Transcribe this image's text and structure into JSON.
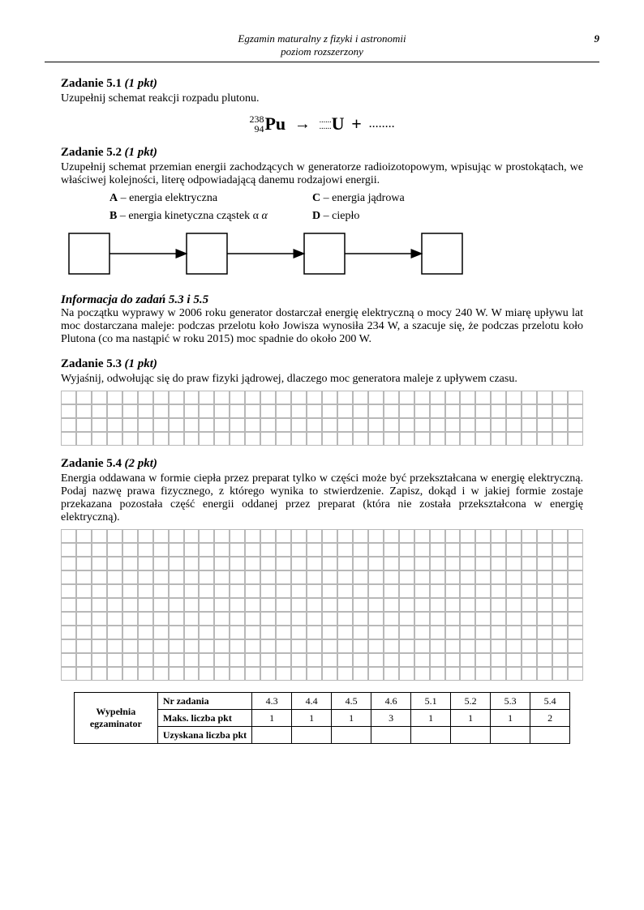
{
  "header": {
    "line1": "Egzamin maturalny z fizyki i astronomii",
    "line2": "poziom rozszerzony",
    "page_number": "9"
  },
  "task51": {
    "title": "Zadanie 5.1",
    "points": "(1 pkt)",
    "body": "Uzupełnij schemat reakcji rozpadu plutonu.",
    "eq_mass": "238",
    "eq_atomic": "94",
    "eq_el1": "Pu",
    "eq_el2": "U",
    "eq_plus": "+",
    "eq_trail": "........"
  },
  "task52": {
    "title": "Zadanie 5.2",
    "points": "(1 pkt)",
    "body": "Uzupełnij schemat przemian energii zachodzących w generatorze radioizotopowym, wpisując w prostokątach, we właściwej kolejności, literę odpowiadającą danemu rodzajowi energii.",
    "legend": {
      "A": "– energia elektryczna",
      "B": "– energia kinetyczna cząstek α",
      "C": "– energia jądrowa",
      "D": "– ciepło"
    },
    "diagram": {
      "box_count": 4,
      "box_size": 50,
      "box_stroke": "#000",
      "arrow_stroke": "#000",
      "spacing": 145
    }
  },
  "info": {
    "title": "Informacja do zadań 5.3 i 5.5",
    "body": "Na początku wyprawy w 2006 roku generator dostarczał energię elektryczną o mocy 240 W. W miarę upływu lat moc dostarczana maleje: podczas przelotu koło Jowisza wynosiła 234 W, a szacuje się, że podczas przelotu koło Plutona (co ma nastąpić w roku 2015) moc spadnie do około 200 W."
  },
  "task53": {
    "title": "Zadanie 5.3",
    "points": "(1 pkt)",
    "body": "Wyjaśnij, odwołując się do praw fizyki jądrowej, dlaczego moc generatora maleje z upływem czasu.",
    "grid_rows": 4,
    "grid_cols": 34
  },
  "task54": {
    "title": "Zadanie 5.4",
    "points": "(2 pkt)",
    "body": "Energia oddawana w formie ciepła przez preparat tylko w części może być przekształcana w energię elektryczną. Podaj nazwę prawa fizycznego, z którego wynika to stwierdzenie. Zapisz, dokąd i w jakiej formie zostaje przekazana pozostała część energii oddanej przez preparat (która nie została przekształcona w energię elektryczną).",
    "grid_rows": 11,
    "grid_cols": 34
  },
  "examiner": {
    "vlabel": "Wypełnia egzaminator",
    "rows": [
      {
        "label": "Nr zadania",
        "vals": [
          "4.3",
          "4.4",
          "4.5",
          "4.6",
          "5.1",
          "5.2",
          "5.3",
          "5.4"
        ]
      },
      {
        "label": "Maks. liczba pkt",
        "vals": [
          "1",
          "1",
          "1",
          "3",
          "1",
          "1",
          "1",
          "2"
        ]
      },
      {
        "label": "Uzyskana liczba pkt",
        "vals": [
          "",
          "",
          "",
          "",
          "",
          "",
          "",
          ""
        ]
      }
    ]
  }
}
